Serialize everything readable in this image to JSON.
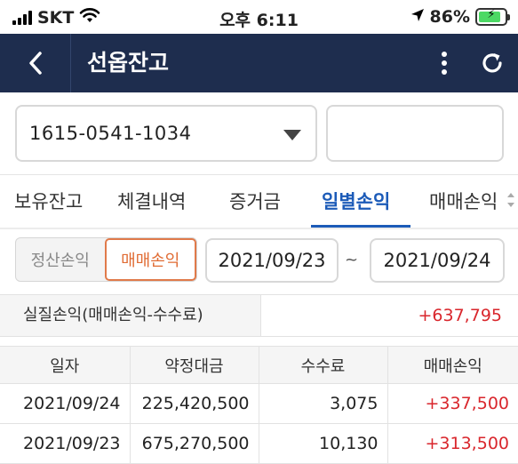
{
  "status_bar": {
    "carrier": "SKT",
    "time": "오후 6:11",
    "battery": "86%",
    "battery_level": 0.86
  },
  "header": {
    "title": "선옵잔고"
  },
  "account": {
    "number": "1615-0541-1034",
    "password_placeholder": ""
  },
  "tabs": [
    {
      "label": "보유잔고",
      "active": false
    },
    {
      "label": "체결내역",
      "active": false
    },
    {
      "label": "증거금",
      "active": false
    },
    {
      "label": "일별손익",
      "active": true
    },
    {
      "label": "매매손익",
      "active": false
    }
  ],
  "filter": {
    "segment": [
      {
        "label": "정산손익",
        "active": false
      },
      {
        "label": "매매손익",
        "active": true
      }
    ],
    "date_from": "2021/09/23",
    "separator": "~",
    "date_to": "2021/09/24"
  },
  "summary": {
    "label": "실질손익(매매손익-수수료)",
    "value": "+637,795"
  },
  "table": {
    "headers": [
      "일자",
      "약정대금",
      "수수료",
      "매매손익"
    ],
    "rows": [
      [
        "2021/09/24",
        "225,420,500",
        "3,075",
        "+337,500"
      ],
      [
        "2021/09/23",
        "675,270,500",
        "10,130",
        "+313,500"
      ]
    ]
  },
  "colors": {
    "header_bg": "#1e2d4e",
    "accent_blue": "#1c5bb8",
    "profit_red": "#d9262c",
    "segment_orange": "#e06b33"
  },
  "icons": {
    "back": "chevron-left-icon",
    "more": "more-vertical-icon",
    "refresh": "refresh-icon",
    "dropdown": "caret-down-icon",
    "wifi": "wifi-icon",
    "location": "location-arrow-icon",
    "battery": "battery-charging-icon",
    "signal": "signal-icon"
  }
}
